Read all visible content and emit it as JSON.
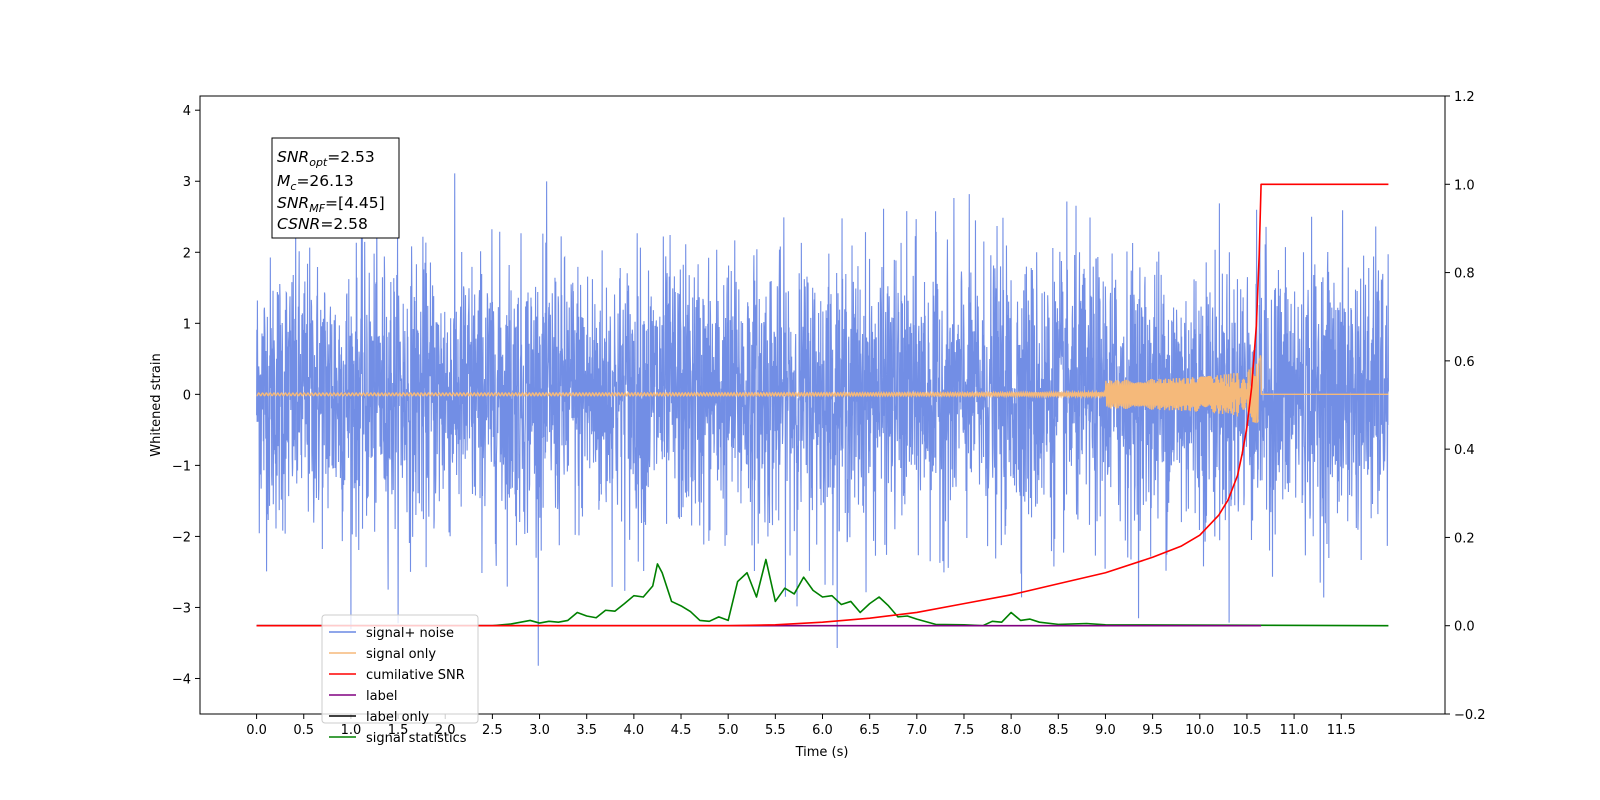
{
  "chart_data": {
    "type": "line",
    "xlabel": "Time (s)",
    "ylabel": "Whitened strain",
    "x_range": [
      -0.6,
      12.6
    ],
    "y_left_range": [
      -4.5,
      4.2
    ],
    "y_right_range": [
      -0.2,
      1.2
    ],
    "x_ticks": [
      "0.0",
      "0.5",
      "1.0",
      "1.5",
      "2.0",
      "2.5",
      "3.0",
      "3.5",
      "4.0",
      "4.5",
      "5.0",
      "5.5",
      "6.0",
      "6.5",
      "7.0",
      "7.5",
      "8.0",
      "8.5",
      "9.0",
      "9.5",
      "10.0",
      "10.5",
      "11.0",
      "11.5"
    ],
    "y_left_ticks": [
      "−4",
      "−3",
      "−2",
      "−1",
      "0",
      "1",
      "2",
      "3",
      "4"
    ],
    "y_right_ticks": [
      "−0.2",
      "0.0",
      "0.2",
      "0.4",
      "0.6",
      "0.8",
      "1.0",
      "1.2"
    ],
    "grid": false,
    "legend_placement": "lower-left",
    "annotation": {
      "snr_opt": {
        "sym": "SNR",
        "sub": "opt",
        "val": "=2.53"
      },
      "mc": {
        "sym": "M",
        "sub": "c",
        "val": "=26.13"
      },
      "snr_mf": {
        "sym": "SNR",
        "sub": "MF",
        "val": "=[4.45]"
      },
      "csnr": {
        "sym": "CSNR",
        "sub": "",
        "val": "=2.58"
      }
    },
    "series": [
      {
        "name": "signal+ noise",
        "axis": "left",
        "color": "#6a88e4",
        "description": "whitened noisy strain, roughly ±2 with peaks to about ±4, spanning 0 to 12 s"
      },
      {
        "name": "signal only",
        "axis": "left",
        "color": "#f5b97a",
        "description": "chirp near 0 growing to about ±0.6 at 10.65 s, then 0"
      },
      {
        "name": "cumilative SNR",
        "axis": "right",
        "color": "#ff0000",
        "x": [
          0.0,
          4.0,
          5.0,
          5.5,
          6.0,
          6.5,
          7.0,
          7.5,
          8.0,
          8.5,
          9.0,
          9.5,
          9.8,
          10.0,
          10.2,
          10.3,
          10.4,
          10.45,
          10.5,
          10.55,
          10.6,
          10.63,
          10.65,
          12.0
        ],
        "values": [
          0.0,
          0.0,
          0.0,
          0.002,
          0.008,
          0.017,
          0.03,
          0.05,
          0.07,
          0.095,
          0.12,
          0.155,
          0.18,
          0.205,
          0.25,
          0.285,
          0.34,
          0.39,
          0.45,
          0.54,
          0.68,
          0.84,
          1.0,
          1.0
        ]
      },
      {
        "name": "label",
        "axis": "right",
        "color": "#800080",
        "x": [
          0.0,
          10.65
        ],
        "values": [
          0.0,
          0.0
        ]
      },
      {
        "name": "label only",
        "axis": "right",
        "color": "#000000",
        "x": [],
        "values": []
      },
      {
        "name": "signal statistics",
        "axis": "right",
        "color": "#008000",
        "x": [
          0.0,
          2.5,
          2.7,
          2.9,
          3.0,
          3.1,
          3.2,
          3.3,
          3.4,
          3.5,
          3.6,
          3.7,
          3.8,
          3.9,
          4.0,
          4.1,
          4.2,
          4.25,
          4.3,
          4.4,
          4.5,
          4.6,
          4.7,
          4.8,
          4.9,
          5.0,
          5.1,
          5.2,
          5.3,
          5.4,
          5.5,
          5.6,
          5.7,
          5.8,
          5.9,
          6.0,
          6.1,
          6.2,
          6.3,
          6.4,
          6.5,
          6.6,
          6.7,
          6.8,
          6.9,
          7.0,
          7.2,
          7.5,
          7.7,
          7.8,
          7.9,
          8.0,
          8.1,
          8.2,
          8.3,
          8.5,
          8.8,
          9.0,
          12.0
        ],
        "values": [
          0.0,
          0.0,
          0.004,
          0.012,
          0.006,
          0.01,
          0.008,
          0.012,
          0.03,
          0.022,
          0.018,
          0.035,
          0.033,
          0.05,
          0.068,
          0.065,
          0.09,
          0.14,
          0.12,
          0.055,
          0.045,
          0.032,
          0.012,
          0.01,
          0.02,
          0.012,
          0.1,
          0.12,
          0.065,
          0.15,
          0.055,
          0.085,
          0.072,
          0.11,
          0.08,
          0.065,
          0.068,
          0.048,
          0.055,
          0.03,
          0.05,
          0.065,
          0.045,
          0.02,
          0.022,
          0.015,
          0.003,
          0.002,
          0.0,
          0.01,
          0.008,
          0.03,
          0.012,
          0.015,
          0.008,
          0.003,
          0.005,
          0.002,
          0.0
        ]
      }
    ]
  }
}
